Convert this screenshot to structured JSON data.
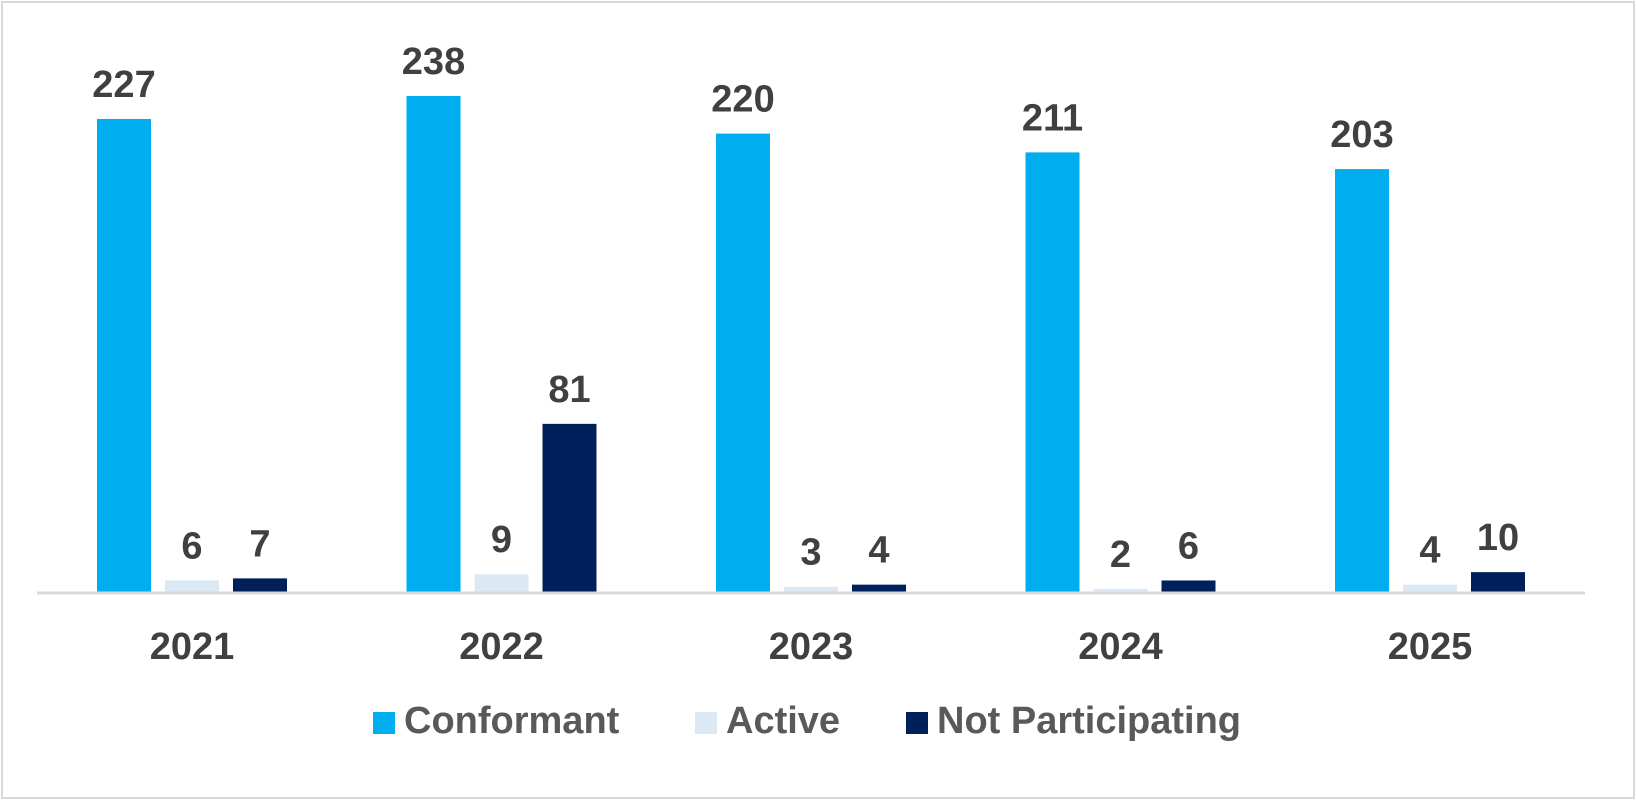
{
  "chart_data": {
    "type": "bar",
    "title": "",
    "xlabel": "",
    "ylabel": "",
    "categories": [
      "2021",
      "2022",
      "2023",
      "2024",
      "2025"
    ],
    "series": [
      {
        "name": "Conformant",
        "color": "#00adef",
        "values": [
          227,
          238,
          220,
          211,
          203
        ]
      },
      {
        "name": "Active",
        "color": "#dce9f5",
        "values": [
          6,
          9,
          3,
          2,
          4
        ]
      },
      {
        "name": "Not Participating",
        "color": "#00205b",
        "values": [
          7,
          81,
          4,
          6,
          10
        ]
      }
    ],
    "ylim": [
      0,
      238
    ],
    "grid": false,
    "data_labels": true,
    "legend_position": "bottom"
  }
}
